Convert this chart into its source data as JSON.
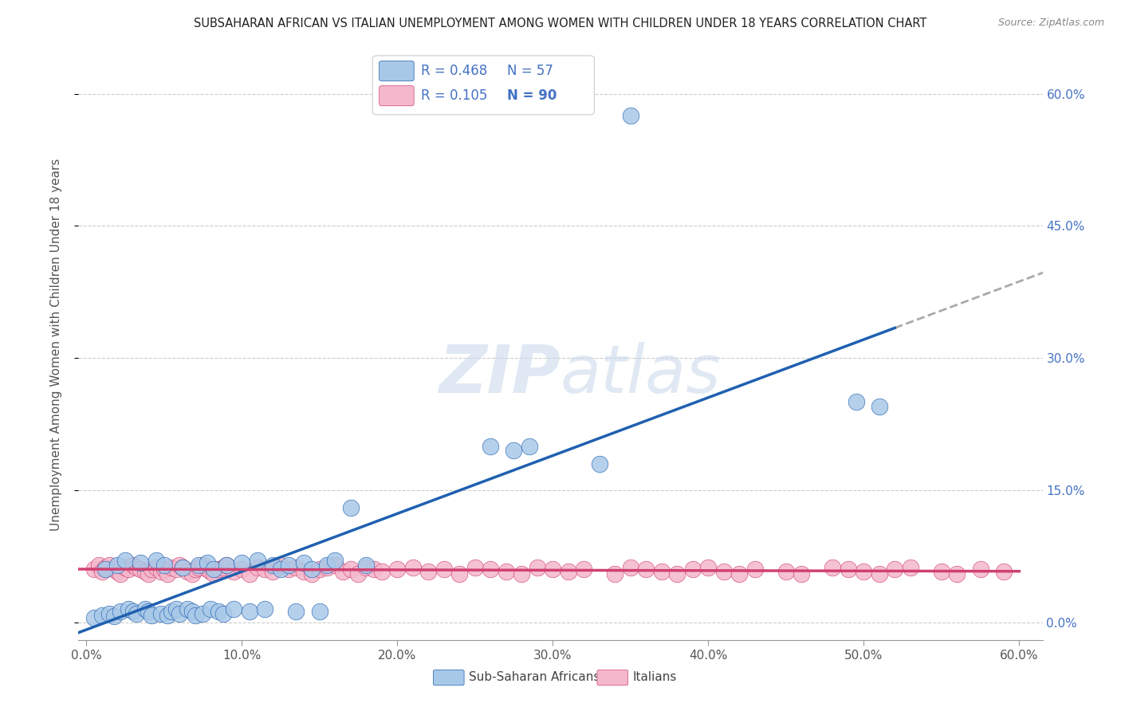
{
  "title": "SUBSAHARAN AFRICAN VS ITALIAN UNEMPLOYMENT AMONG WOMEN WITH CHILDREN UNDER 18 YEARS CORRELATION CHART",
  "source": "Source: ZipAtlas.com",
  "ylabel": "Unemployment Among Women with Children Under 18 years",
  "blue_color": "#A8C8E8",
  "pink_color": "#F4B8CC",
  "blue_line_color": "#2060B0",
  "pink_line_color": "#D04070",
  "text_color_blue": "#4472C4",
  "legend_r_blue": "0.468",
  "legend_n_blue": "57",
  "legend_r_pink": "0.105",
  "legend_n_pink": "90",
  "blue_x": [
    0.005,
    0.01,
    0.012,
    0.015,
    0.018,
    0.02,
    0.022,
    0.025,
    0.027,
    0.03,
    0.032,
    0.035,
    0.038,
    0.04,
    0.042,
    0.045,
    0.048,
    0.05,
    0.052,
    0.055,
    0.058,
    0.06,
    0.062,
    0.065,
    0.068,
    0.07,
    0.072,
    0.075,
    0.078,
    0.08,
    0.082,
    0.085,
    0.088,
    0.09,
    0.095,
    0.1,
    0.105,
    0.11,
    0.115,
    0.12,
    0.125,
    0.13,
    0.135,
    0.14,
    0.145,
    0.15,
    0.155,
    0.16,
    0.17,
    0.18,
    0.26,
    0.275,
    0.285,
    0.33,
    0.35,
    0.495,
    0.51
  ],
  "blue_y": [
    0.005,
    0.008,
    0.06,
    0.01,
    0.007,
    0.065,
    0.012,
    0.07,
    0.015,
    0.012,
    0.01,
    0.068,
    0.015,
    0.012,
    0.008,
    0.07,
    0.01,
    0.065,
    0.008,
    0.012,
    0.015,
    0.01,
    0.062,
    0.015,
    0.012,
    0.008,
    0.065,
    0.01,
    0.068,
    0.015,
    0.06,
    0.012,
    0.01,
    0.065,
    0.015,
    0.068,
    0.012,
    0.07,
    0.015,
    0.065,
    0.06,
    0.065,
    0.012,
    0.068,
    0.06,
    0.012,
    0.065,
    0.07,
    0.13,
    0.065,
    0.2,
    0.195,
    0.2,
    0.18,
    0.575,
    0.25,
    0.245
  ],
  "pink_x": [
    0.005,
    0.008,
    0.01,
    0.012,
    0.015,
    0.018,
    0.02,
    0.022,
    0.025,
    0.027,
    0.03,
    0.032,
    0.035,
    0.038,
    0.04,
    0.042,
    0.045,
    0.048,
    0.05,
    0.052,
    0.055,
    0.058,
    0.06,
    0.062,
    0.065,
    0.068,
    0.07,
    0.072,
    0.075,
    0.078,
    0.08,
    0.082,
    0.085,
    0.088,
    0.09,
    0.095,
    0.1,
    0.105,
    0.11,
    0.115,
    0.12,
    0.125,
    0.13,
    0.135,
    0.14,
    0.145,
    0.15,
    0.155,
    0.16,
    0.165,
    0.17,
    0.175,
    0.18,
    0.185,
    0.19,
    0.2,
    0.21,
    0.22,
    0.23,
    0.24,
    0.25,
    0.26,
    0.27,
    0.28,
    0.29,
    0.3,
    0.31,
    0.32,
    0.34,
    0.35,
    0.36,
    0.37,
    0.38,
    0.39,
    0.4,
    0.41,
    0.42,
    0.43,
    0.45,
    0.46,
    0.48,
    0.49,
    0.5,
    0.51,
    0.52,
    0.53,
    0.55,
    0.56,
    0.575,
    0.59
  ],
  "pink_y": [
    0.06,
    0.065,
    0.058,
    0.062,
    0.065,
    0.06,
    0.058,
    0.055,
    0.062,
    0.06,
    0.065,
    0.062,
    0.06,
    0.058,
    0.055,
    0.06,
    0.062,
    0.058,
    0.06,
    0.055,
    0.062,
    0.06,
    0.065,
    0.062,
    0.058,
    0.055,
    0.06,
    0.062,
    0.065,
    0.06,
    0.058,
    0.055,
    0.06,
    0.062,
    0.065,
    0.058,
    0.06,
    0.055,
    0.062,
    0.06,
    0.058,
    0.065,
    0.06,
    0.062,
    0.058,
    0.055,
    0.06,
    0.062,
    0.065,
    0.058,
    0.06,
    0.055,
    0.062,
    0.06,
    0.058,
    0.06,
    0.062,
    0.058,
    0.06,
    0.055,
    0.062,
    0.06,
    0.058,
    0.055,
    0.062,
    0.06,
    0.058,
    0.06,
    0.055,
    0.062,
    0.06,
    0.058,
    0.055,
    0.06,
    0.062,
    0.058,
    0.055,
    0.06,
    0.058,
    0.055,
    0.062,
    0.06,
    0.058,
    0.055,
    0.06,
    0.062,
    0.058,
    0.055,
    0.06,
    0.058
  ],
  "xlim": [
    0.0,
    0.6
  ],
  "ylim": [
    -0.02,
    0.65
  ],
  "xticks": [
    0.0,
    0.1,
    0.2,
    0.3,
    0.4,
    0.5,
    0.6
  ],
  "yticks": [
    0.0,
    0.15,
    0.3,
    0.45,
    0.6
  ],
  "xtick_labels": [
    "0.0%",
    "10.0%",
    "20.0%",
    "30.0%",
    "40.0%",
    "50.0%",
    "60.0%"
  ],
  "ytick_labels_right": [
    "0.0%",
    "15.0%",
    "30.0%",
    "45.0%",
    "60.0%"
  ]
}
